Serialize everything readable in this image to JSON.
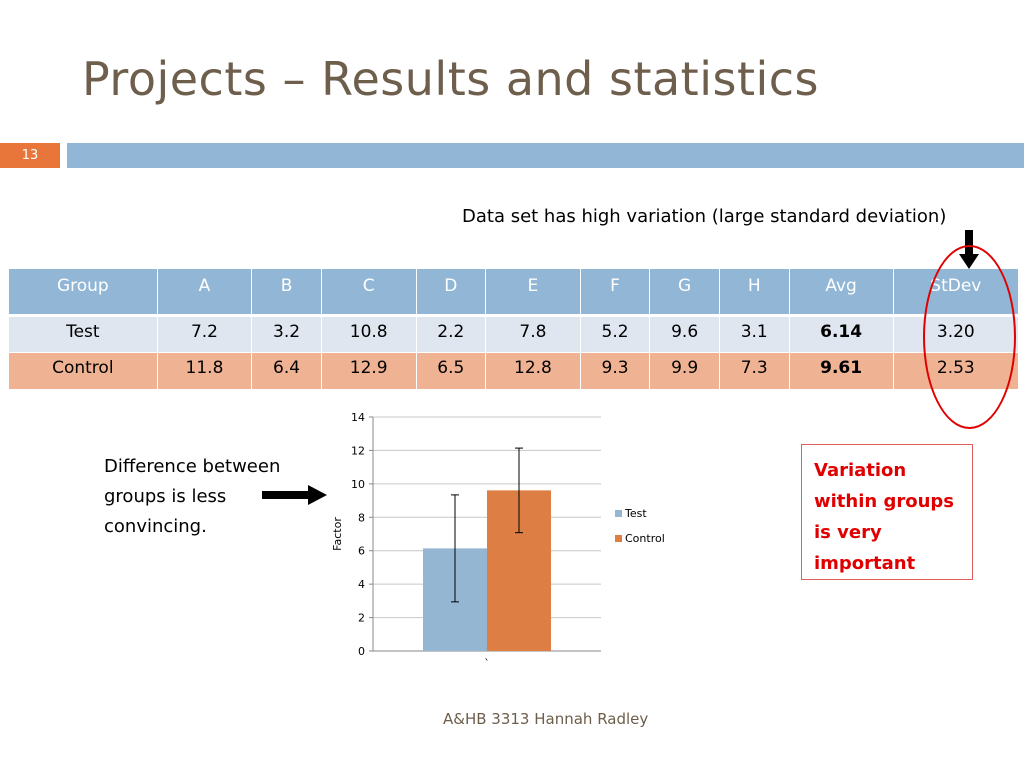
{
  "slide": {
    "title": "Projects – Results and statistics",
    "number": "13",
    "footer": "A&HB 3313 Hannah Radley"
  },
  "annotations": {
    "top_note": "Data set has high variation (large standard deviation)",
    "difference_note": "Difference between groups is less convincing.",
    "variation_note": "Variation within groups is very important"
  },
  "table": {
    "headers": [
      "Group",
      "A",
      "B",
      "C",
      "D",
      "E",
      "F",
      "G",
      "H",
      "Avg",
      "StDev"
    ],
    "rows": [
      [
        "Test",
        "7.2",
        "3.2",
        "10.8",
        "2.2",
        "7.8",
        "5.2",
        "9.6",
        "3.1",
        "6.14",
        "3.20"
      ],
      [
        "Control",
        "11.8",
        "6.4",
        "12.9",
        "6.5",
        "12.8",
        "9.3",
        "9.9",
        "7.3",
        "9.61",
        "2.53"
      ]
    ]
  },
  "colors": {
    "title": "#6e5e4c",
    "accent_orange": "#e8763a",
    "accent_blue": "#92b6d6",
    "test_series": "#94b6d2",
    "control_series": "#dd7f45",
    "highlight_red": "#e00000"
  },
  "chart_data": {
    "type": "bar",
    "categories": [
      "`"
    ],
    "series": [
      {
        "name": "Test",
        "values": [
          6.14
        ],
        "error": [
          3.2
        ],
        "color": "#94b6d2"
      },
      {
        "name": "Control",
        "values": [
          9.61
        ],
        "error": [
          2.53
        ],
        "color": "#dd7f45"
      }
    ],
    "ylabel": "Factor",
    "ylim": [
      0,
      14
    ],
    "yticks": [
      0,
      2,
      4,
      6,
      8,
      10,
      12,
      14
    ],
    "grid": true,
    "legend_position": "right"
  }
}
